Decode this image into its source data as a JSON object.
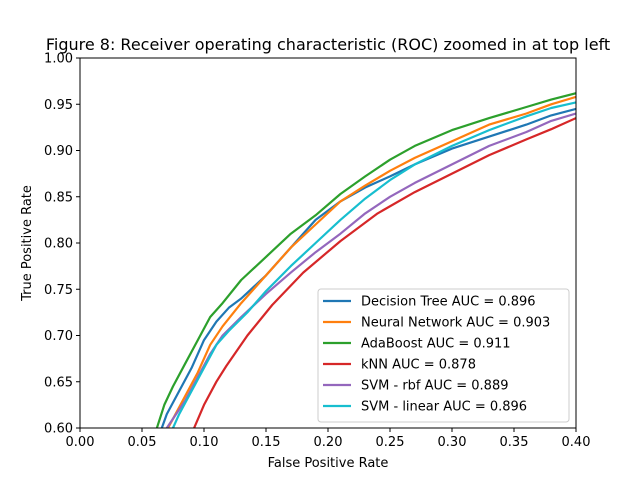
{
  "chart_data": {
    "type": "line",
    "title": "Figure 8: Receiver operating characteristic (ROC) zoomed in at top left",
    "xlabel": "False Positive Rate",
    "ylabel": "True Positive Rate",
    "xlim": [
      0.0,
      0.4
    ],
    "ylim": [
      0.6,
      1.0
    ],
    "xticks": [
      "0.00",
      "0.05",
      "0.10",
      "0.15",
      "0.20",
      "0.25",
      "0.30",
      "0.35",
      "0.40"
    ],
    "yticks": [
      "0.60",
      "0.65",
      "0.70",
      "0.75",
      "0.80",
      "0.85",
      "0.90",
      "0.95",
      "1.00"
    ],
    "grid": false,
    "legend_position": "lower-right",
    "series": [
      {
        "name": "Decision Tree AUC = 0.896",
        "color": "#1f77b4",
        "points": [
          [
            0.066,
            0.6
          ],
          [
            0.07,
            0.615
          ],
          [
            0.08,
            0.64
          ],
          [
            0.09,
            0.665
          ],
          [
            0.1,
            0.695
          ],
          [
            0.11,
            0.715
          ],
          [
            0.12,
            0.73
          ],
          [
            0.13,
            0.74
          ],
          [
            0.15,
            0.765
          ],
          [
            0.17,
            0.795
          ],
          [
            0.19,
            0.825
          ],
          [
            0.21,
            0.845
          ],
          [
            0.23,
            0.86
          ],
          [
            0.25,
            0.872
          ],
          [
            0.27,
            0.885
          ],
          [
            0.3,
            0.902
          ],
          [
            0.33,
            0.915
          ],
          [
            0.36,
            0.928
          ],
          [
            0.38,
            0.938
          ],
          [
            0.4,
            0.945
          ]
        ]
      },
      {
        "name": "Neural Network AUC = 0.903",
        "color": "#ff7f0e",
        "points": [
          [
            0.071,
            0.6
          ],
          [
            0.075,
            0.61
          ],
          [
            0.085,
            0.635
          ],
          [
            0.095,
            0.66
          ],
          [
            0.105,
            0.69
          ],
          [
            0.115,
            0.71
          ],
          [
            0.13,
            0.735
          ],
          [
            0.15,
            0.765
          ],
          [
            0.17,
            0.795
          ],
          [
            0.19,
            0.82
          ],
          [
            0.21,
            0.845
          ],
          [
            0.23,
            0.862
          ],
          [
            0.25,
            0.878
          ],
          [
            0.27,
            0.892
          ],
          [
            0.3,
            0.91
          ],
          [
            0.33,
            0.928
          ],
          [
            0.36,
            0.94
          ],
          [
            0.38,
            0.95
          ],
          [
            0.4,
            0.958
          ]
        ]
      },
      {
        "name": "AdaBoost AUC = 0.911",
        "color": "#2ca02c",
        "points": [
          [
            0.062,
            0.6
          ],
          [
            0.068,
            0.625
          ],
          [
            0.075,
            0.645
          ],
          [
            0.085,
            0.67
          ],
          [
            0.095,
            0.695
          ],
          [
            0.105,
            0.72
          ],
          [
            0.115,
            0.735
          ],
          [
            0.13,
            0.76
          ],
          [
            0.15,
            0.785
          ],
          [
            0.17,
            0.81
          ],
          [
            0.19,
            0.83
          ],
          [
            0.21,
            0.853
          ],
          [
            0.23,
            0.872
          ],
          [
            0.25,
            0.89
          ],
          [
            0.27,
            0.905
          ],
          [
            0.3,
            0.922
          ],
          [
            0.33,
            0.935
          ],
          [
            0.36,
            0.947
          ],
          [
            0.38,
            0.955
          ],
          [
            0.4,
            0.962
          ]
        ]
      },
      {
        "name": "kNN AUC = 0.878",
        "color": "#d62728",
        "points": [
          [
            0.092,
            0.6
          ],
          [
            0.1,
            0.625
          ],
          [
            0.11,
            0.65
          ],
          [
            0.118,
            0.667
          ],
          [
            0.135,
            0.7
          ],
          [
            0.155,
            0.733
          ],
          [
            0.18,
            0.768
          ],
          [
            0.21,
            0.802
          ],
          [
            0.24,
            0.832
          ],
          [
            0.27,
            0.855
          ],
          [
            0.3,
            0.875
          ],
          [
            0.33,
            0.895
          ],
          [
            0.36,
            0.912
          ],
          [
            0.38,
            0.923
          ],
          [
            0.4,
            0.935
          ]
        ]
      },
      {
        "name": "SVM - rbf AUC = 0.889",
        "color": "#9467bd",
        "points": [
          [
            0.07,
            0.6
          ],
          [
            0.075,
            0.61
          ],
          [
            0.085,
            0.63
          ],
          [
            0.095,
            0.655
          ],
          [
            0.105,
            0.68
          ],
          [
            0.115,
            0.7
          ],
          [
            0.13,
            0.72
          ],
          [
            0.15,
            0.745
          ],
          [
            0.17,
            0.768
          ],
          [
            0.19,
            0.79
          ],
          [
            0.21,
            0.81
          ],
          [
            0.23,
            0.832
          ],
          [
            0.25,
            0.85
          ],
          [
            0.27,
            0.865
          ],
          [
            0.3,
            0.885
          ],
          [
            0.33,
            0.905
          ],
          [
            0.36,
            0.92
          ],
          [
            0.38,
            0.932
          ],
          [
            0.4,
            0.94
          ]
        ]
      },
      {
        "name": "SVM - linear AUC = 0.896",
        "color": "#17becf",
        "points": [
          [
            0.075,
            0.6
          ],
          [
            0.08,
            0.615
          ],
          [
            0.09,
            0.64
          ],
          [
            0.1,
            0.665
          ],
          [
            0.11,
            0.69
          ],
          [
            0.12,
            0.705
          ],
          [
            0.135,
            0.725
          ],
          [
            0.15,
            0.748
          ],
          [
            0.17,
            0.775
          ],
          [
            0.19,
            0.8
          ],
          [
            0.21,
            0.825
          ],
          [
            0.23,
            0.848
          ],
          [
            0.25,
            0.868
          ],
          [
            0.27,
            0.885
          ],
          [
            0.3,
            0.905
          ],
          [
            0.33,
            0.922
          ],
          [
            0.36,
            0.937
          ],
          [
            0.38,
            0.946
          ],
          [
            0.4,
            0.952
          ]
        ]
      }
    ]
  }
}
